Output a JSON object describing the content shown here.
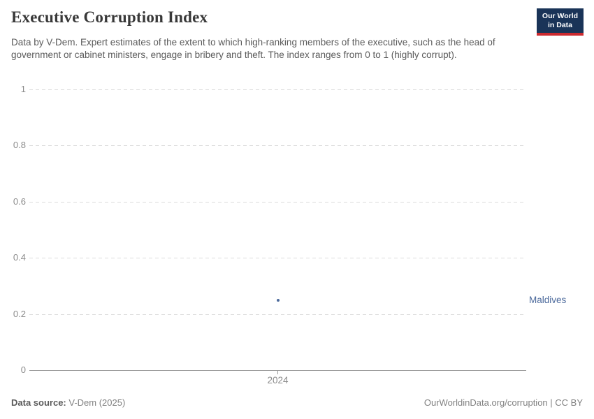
{
  "header": {
    "title": "Executive Corruption Index",
    "subtitle": "Data by V-Dem. Expert estimates of the extent to which high-ranking members of the executive, such as the head of government or cabinet ministers, engage in bribery and theft. The index ranges from 0 to 1 (highly corrupt).",
    "logo": {
      "line1": "Our World",
      "line2": "in Data",
      "bg_color": "#1a3458",
      "accent_color": "#cc2a2f"
    }
  },
  "chart_data": {
    "type": "scatter",
    "title": "Executive Corruption Index",
    "xlabel": "",
    "ylabel": "",
    "ylim": [
      0,
      1
    ],
    "y_ticks": [
      1,
      0.8,
      0.6,
      0.4,
      0.2,
      0
    ],
    "x_tick_labels": [
      "2024"
    ],
    "grid": "horizontal-dashed",
    "gridline_color": "#dcdcdc",
    "axis_color": "#9a9a9a",
    "series": [
      {
        "name": "Maldives",
        "color": "#4C6A9C",
        "points": [
          {
            "x": 2024,
            "y": 0.25
          }
        ]
      }
    ]
  },
  "footer": {
    "source_label": "Data source:",
    "source_value": " V-Dem (2025)",
    "credit": "OurWorldinData.org/corruption | CC BY"
  }
}
